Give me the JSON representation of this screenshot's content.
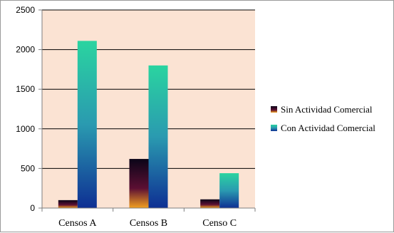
{
  "chart_data": {
    "type": "bar",
    "title": "",
    "xlabel": "",
    "ylabel": "",
    "categories": [
      "Censos A",
      "Censos B",
      "Censo C"
    ],
    "series": [
      {
        "name": "Sin Actividad Comercial",
        "values": [
          100,
          620,
          110
        ]
      },
      {
        "name": "Con Actividad Comercial",
        "values": [
          2110,
          1800,
          440
        ]
      }
    ],
    "ylim": [
      0,
      2500
    ],
    "yticks": [
      0,
      500,
      1000,
      1500,
      2000,
      2500
    ],
    "ytick_labels": [
      "0",
      "500",
      "1000",
      "1500",
      "2000",
      "2500"
    ],
    "grid": true,
    "legend_position": "right",
    "colors": {
      "plot_background": "#fbe3d3",
      "gridline": "#000000",
      "axis": "#7f7f7f",
      "sin_top": "#0a0518",
      "sin_mid": "#5c0f33",
      "sin_bottom": "#f2a020",
      "con_top": "#2ad4a0",
      "con_mid": "#2a9ab0",
      "con_bottom": "#0e2f93",
      "text": "#000000"
    }
  }
}
